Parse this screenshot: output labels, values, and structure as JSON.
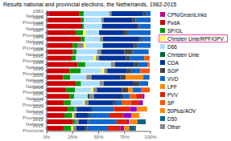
{
  "chart_data": {
    "type": "bar",
    "orientation": "horizontal",
    "stacked": true,
    "grid": false,
    "legend": "right",
    "title": "Results national and provincial elections, the Netherlands, 1982-2015",
    "categories": [
      "1982 National",
      "1984 Provincial",
      "1986 National",
      "1987 Provincial",
      "1989 National",
      "1991 Provincial",
      "1994 National",
      "1995 Provincial",
      "1998 National",
      "1999 Provincial",
      "2002 National",
      "2003 National",
      "2003 Provincial",
      "2006 National",
      "2007 Provincial",
      "2010 National",
      "2011 Provincial",
      "2012 National",
      "2015 Provincial"
    ],
    "series": [
      {
        "values": [
          1.7,
          1.2,
          0.8,
          1.0,
          0.7,
          1.0,
          1.2,
          1.0,
          0.8,
          0.8,
          0.7,
          0.7,
          0.8,
          0.6,
          0.7,
          0.6,
          0.6,
          0.6,
          0.6
        ],
        "colors": [
          "#c0008c",
          "#c0008c",
          "#c0008c",
          "#c0008c",
          "#c0008c",
          "#c0008c",
          "#c0008c",
          "#c0008c",
          "#c0008c",
          "#c0008c",
          "#c0008c",
          "#c0008c",
          "#c0008c",
          "#c0008c",
          "#c0008c",
          "#c0008c",
          "#c0008c",
          "#c0008c",
          "#c0008c"
        ]
      },
      {
        "values": [
          29.4,
          32.0,
          33.3,
          27.0,
          31.9,
          24.0,
          24.0,
          23.0,
          29.0,
          21.0,
          15.1,
          27.3,
          18.0,
          21.2,
          16.0,
          19.6,
          16.5,
          24.8,
          15.8
        ],
        "colors": [
          "#cc0000",
          "#cc0000",
          "#cc0000",
          "#cc0000",
          "#cc0000",
          "#cc0000",
          "#cc0000",
          "#cc0000",
          "#cc0000",
          "#cc0000",
          "#cc0000",
          "#cc0000",
          "#cc0000",
          "#cc0000",
          "#cc0000",
          "#cc0000",
          "#cc0000",
          "#cc0000",
          "#cc0000"
        ]
      },
      {
        "values": [
          4.5,
          2.5,
          1.8,
          7.0,
          4.1,
          4.5,
          3.5,
          4.0,
          7.3,
          11.0,
          7.0,
          5.1,
          8.5,
          4.6,
          6.5,
          6.7,
          7.5,
          2.3,
          7.3
        ],
        "colors": [
          "#009900",
          "#009900",
          "#009900",
          "#009900",
          "#009900",
          "#009900",
          "#009900",
          "#009900",
          "#009900",
          "#009900",
          "#009900",
          "#009900",
          "#009900",
          "#009900",
          "#009900",
          "#009900",
          "#009900",
          "#009900",
          "#009900"
        ]
      },
      {
        "values": [
          24.8,
          17.0,
          17.4,
          2.5,
          14.6,
          6.0,
          19.9,
          17.0,
          24.7,
          20.0,
          15.4,
          17.9,
          15.5,
          13.2,
          12.0,
          2.0,
          1.5,
          3.0,
          1.8
        ],
        "colors": [
          "#aaddff",
          "#aaddff",
          "#aaddff",
          "#ffff44",
          "#aaddff",
          "#888888",
          "#aaddff",
          "#aaddff",
          "#aaddff",
          "#aaddff",
          "#aaddff",
          "#aaddff",
          "#aaddff",
          "#aaddff",
          "#aaddff",
          "#888888",
          "#ffff44",
          "#888888",
          "#ffff44"
        ]
      },
      {
        "values": [
          2.0,
          2.0,
          34.6,
          13.0,
          3.0,
          2.5,
          4.0,
          2.5,
          4.0,
          2.5,
          5.0,
          4.0,
          2.0,
          2.0,
          1.5,
          13.7,
          2.0,
          8.5,
          3.0
        ],
        "colors": [
          "#888888",
          "#888888",
          "#003399",
          "#aaddff",
          "#888888",
          "#ffff44",
          "#888888",
          "#ffff44",
          "#888888",
          "#ffff44",
          "#888888",
          "#888888",
          "#ffff44",
          "#006633",
          "#ffff44",
          "#003399",
          "#888888",
          "#003399",
          "#888888"
        ]
      },
      {
        "values": [
          30.4,
          28.0,
          1.8,
          24.0,
          35.3,
          16.0,
          22.2,
          3.0,
          18.4,
          3.0,
          27.9,
          28.6,
          3.5,
          4.0,
          3.5,
          1.6,
          12.0,
          1.5,
          8.0
        ],
        "colors": [
          "#003399",
          "#003399",
          "#444444",
          "#003399",
          "#003399",
          "#aaddff",
          "#003399",
          "#888888",
          "#003399",
          "#888888",
          "#003399",
          "#003399",
          "#888888",
          "#888888",
          "#888888",
          "#444444",
          "#003399",
          "#444444",
          "#003399"
        ]
      },
      {
        "values": [
          2.5,
          3.0,
          10.3,
          3.0,
          2.0,
          30.0,
          7.9,
          26.0,
          4.0,
          19.0,
          5.0,
          6.1,
          24.0,
          26.5,
          24.0,
          20.4,
          1.8,
          26.6,
          2.5
        ],
        "colors": [
          "#444444",
          "#444444",
          "#1166cc",
          "#444444",
          "#444444",
          "#003399",
          "#444444",
          "#003399",
          "#444444",
          "#003399",
          "#444444",
          "#444444",
          "#003399",
          "#003399",
          "#003399",
          "#1166cc",
          "#444444",
          "#1166cc",
          "#444444"
        ]
      },
      {
        "values": [
          4.7,
          14.3,
          null,
          22.5,
          8.4,
          3.0,
          15.5,
          3.5,
          9.0,
          4.0,
          17.0,
          8.0,
          6.0,
          1.6,
          2.5,
          15.5,
          18.5,
          10.1,
          20.0
        ],
        "colors": [
          "#1166cc",
          "#1166cc",
          null,
          "#1166cc",
          "#1166cc",
          "#444444",
          "#1166cc",
          "#444444",
          "#1166cc",
          "#444444",
          "#ff8800",
          "#1166cc",
          "#444444",
          "#444444",
          "#444444",
          "#dd2200",
          "#1166cc",
          "#dd2200",
          "#1166cc"
        ]
      },
      {
        "values": [
          null,
          null,
          null,
          null,
          null,
          13.0,
          null,
          14.0,
          2.0,
          9.0,
          5.9,
          null,
          4.5,
          6.6,
          6.0,
          6.6,
          13.5,
          2.0,
          12.0
        ],
        "colors": [
          null,
          null,
          null,
          null,
          null,
          "#1166cc",
          null,
          "#1166cc",
          "#ff5500",
          "#1166cc",
          "#1166cc",
          null,
          "#ff8800",
          "#1166cc",
          "#1166cc",
          "#9900cc",
          "#dd2200",
          "#9900cc",
          "#dd2200"
        ]
      },
      {
        "values": [
          null,
          null,
          null,
          null,
          null,
          null,
          null,
          5.0,
          null,
          9.0,
          null,
          null,
          8.5,
          5.9,
          8.5,
          10.0,
          7.5,
          8.0,
          3.5
        ],
        "colors": [
          null,
          null,
          null,
          null,
          null,
          null,
          null,
          "#ff5500",
          null,
          "#ff5500",
          null,
          null,
          "#1166cc",
          "#ff5500",
          "#ff5500",
          "#ff8800",
          "#9900cc",
          "#ff8800",
          "#9900cc"
        ]
      },
      {
        "values": [
          null,
          null,
          null,
          null,
          null,
          null,
          null,
          null,
          null,
          null,
          null,
          null,
          8.0,
          5.9,
          8.0,
          null,
          8.0,
          8.0,
          5.0
        ],
        "colors": [
          null,
          null,
          null,
          null,
          null,
          null,
          null,
          null,
          null,
          null,
          null,
          null,
          "#ff5500",
          "#dd2200",
          "#dd2200",
          null,
          "#ff8800",
          "#006688",
          "#ff8800"
        ]
      },
      {
        "values": [
          null,
          null,
          null,
          null,
          null,
          null,
          null,
          null,
          null,
          null,
          null,
          null,
          null,
          2.0,
          3.5,
          null,
          null,
          null,
          5.5
        ],
        "colors": [
          null,
          null,
          null,
          null,
          null,
          null,
          null,
          null,
          null,
          null,
          null,
          null,
          null,
          "#9900cc",
          "#9900cc",
          null,
          null,
          null,
          "#006688"
        ]
      },
      {
        "values": [
          null,
          null,
          null,
          null,
          null,
          null,
          null,
          null,
          null,
          null,
          null,
          null,
          null,
          null,
          null,
          null,
          null,
          null,
          1.0
        ],
        "colors": [
          null,
          null,
          null,
          null,
          null,
          null,
          null,
          null,
          null,
          null,
          null,
          null,
          null,
          null,
          null,
          null,
          null,
          null,
          "#884400"
        ]
      }
    ],
    "xlim": [
      0,
      100
    ],
    "xticks": [
      {
        "value": 0,
        "label": "0%"
      },
      {
        "value": 25,
        "label": "25%"
      },
      {
        "value": 50,
        "label": "50%"
      },
      {
        "value": 75,
        "label": "75%"
      },
      {
        "value": 100,
        "label": "100%"
      }
    ],
    "legend_entries": [
      {
        "label": "CPN/GroenLinks",
        "color": "#c0008c",
        "highlight": false
      },
      {
        "label": "PvdA",
        "color": "#cc0000",
        "highlight": false
      },
      {
        "label": "SP/GL",
        "color": "#009900",
        "highlight": false
      },
      {
        "label": "Christen Unie/RPF/GPV",
        "color": "#ffff44",
        "highlight": true
      },
      {
        "label": "D66",
        "color": "#aaddff",
        "highlight": false
      },
      {
        "label": "Christen Unie",
        "color": "#006633",
        "highlight": false
      },
      {
        "label": "CDA",
        "color": "#003399",
        "highlight": false
      },
      {
        "label": "SGP",
        "color": "#444444",
        "highlight": false
      },
      {
        "label": "VVD",
        "color": "#1166cc",
        "highlight": false
      },
      {
        "label": "LPF",
        "color": "#ff8800",
        "highlight": false
      },
      {
        "label": "PVV",
        "color": "#dd2200",
        "highlight": false
      },
      {
        "label": "SP",
        "color": "#ff5500",
        "highlight": false
      },
      {
        "label": "50Plus/AOV",
        "color": "#ff8800",
        "highlight": false
      },
      {
        "label": "D50",
        "color": "#006688",
        "highlight": false
      },
      {
        "label": "Other",
        "color": "#888888",
        "highlight": false
      }
    ]
  }
}
